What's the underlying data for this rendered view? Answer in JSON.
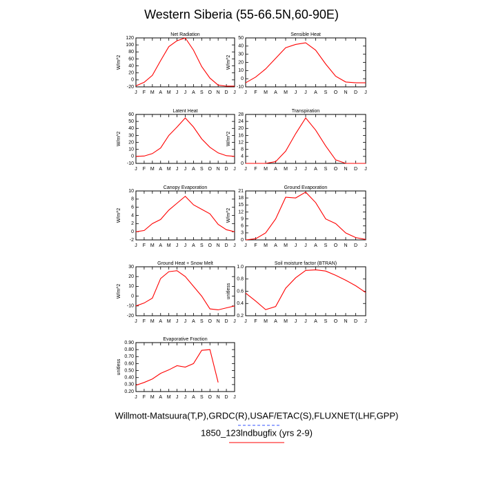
{
  "title": "Western Siberia (55-66.5N,60-90E)",
  "footer": [
    "Willmott-Matsuura(T,P),GRDC(R),USAF/ETAC(S),FLUXNET(LHF,GPP)",
    "1850_123lndbugfix (yrs 2-9)"
  ],
  "chart_data": [
    {
      "type": "line",
      "title": "Net Radiation",
      "y_label": "W/m^2",
      "categories": [
        "J",
        "F",
        "M",
        "A",
        "M",
        "J",
        "J",
        "A",
        "S",
        "O",
        "N",
        "D",
        "J"
      ],
      "series": [
        {
          "color": "#ff0000",
          "values": [
            -17,
            -7,
            13,
            55,
            95,
            112,
            120,
            85,
            38,
            5,
            -15,
            -18,
            -18
          ]
        }
      ],
      "ylim": [
        -20,
        120
      ],
      "yticks": [
        -20,
        0,
        20,
        40,
        60,
        80,
        100,
        120
      ]
    },
    {
      "type": "line",
      "title": "Sensible Heat",
      "y_label": "W/m^2",
      "categories": [
        "J",
        "F",
        "M",
        "A",
        "M",
        "J",
        "J",
        "A",
        "S",
        "O",
        "N",
        "D",
        "J"
      ],
      "series": [
        {
          "color": "#ff0000",
          "values": [
            -5,
            2,
            12,
            25,
            38,
            42,
            44,
            35,
            18,
            3,
            -4,
            -5,
            -5
          ]
        }
      ],
      "ylim": [
        -10,
        50
      ],
      "yticks": [
        -10,
        0,
        10,
        20,
        30,
        40,
        50
      ]
    },
    {
      "type": "line",
      "title": "Latent Heat",
      "y_label": "W/m^2",
      "categories": [
        "J",
        "F",
        "M",
        "A",
        "M",
        "J",
        "J",
        "A",
        "S",
        "O",
        "N",
        "D",
        "J"
      ],
      "series": [
        {
          "color": "#ff0000",
          "values": [
            0,
            0.5,
            4,
            12,
            30,
            42,
            55,
            42,
            25,
            13,
            5,
            1,
            0
          ]
        }
      ],
      "ylim": [
        -10,
        60
      ],
      "yticks": [
        -10,
        0,
        10,
        20,
        30,
        40,
        50,
        60
      ]
    },
    {
      "type": "line",
      "title": "Transpiration",
      "y_label": "W/m^2",
      "categories": [
        "J",
        "F",
        "M",
        "A",
        "M",
        "J",
        "J",
        "A",
        "S",
        "O",
        "N",
        "D",
        "J"
      ],
      "series": [
        {
          "color": "#ff0000",
          "values": [
            0,
            0,
            0,
            1,
            7,
            17,
            26,
            19,
            10,
            2,
            0,
            0,
            0
          ]
        }
      ],
      "ylim": [
        0,
        28
      ],
      "yticks": [
        0,
        4,
        8,
        12,
        16,
        20,
        24,
        28
      ]
    },
    {
      "type": "line",
      "title": "Canopy Evaporation",
      "y_label": "W/m^2",
      "categories": [
        "J",
        "F",
        "M",
        "A",
        "M",
        "J",
        "J",
        "A",
        "S",
        "O",
        "N",
        "D",
        "J"
      ],
      "series": [
        {
          "color": "#ff0000",
          "values": [
            0,
            0.3,
            2,
            3,
            5.3,
            7,
            8.7,
            6.6,
            5.5,
            4.4,
            1.8,
            0.5,
            0
          ]
        }
      ],
      "ylim": [
        -2,
        10
      ],
      "yticks": [
        -2,
        0,
        2,
        4,
        6,
        8,
        10
      ]
    },
    {
      "type": "line",
      "title": "Ground Evaporation",
      "y_label": "W/m^2",
      "categories": [
        "J",
        "F",
        "M",
        "A",
        "M",
        "J",
        "J",
        "A",
        "S",
        "O",
        "N",
        "D",
        "J"
      ],
      "series": [
        {
          "color": "#ff0000",
          "values": [
            0,
            0.5,
            3,
            9,
            18.3,
            18,
            20.5,
            16,
            9,
            7,
            3,
            1,
            0.2
          ]
        }
      ],
      "ylim": [
        0,
        21
      ],
      "yticks": [
        0,
        3,
        6,
        9,
        12,
        15,
        18,
        21
      ]
    },
    {
      "type": "line",
      "title": "Ground Heat + Snow Melt",
      "y_label": "W/m^2",
      "categories": [
        "J",
        "F",
        "M",
        "A",
        "M",
        "J",
        "J",
        "A",
        "S",
        "O",
        "N",
        "D",
        "J"
      ],
      "series": [
        {
          "color": "#ff0000",
          "values": [
            -10,
            -7,
            -2,
            18,
            25,
            26,
            20,
            10,
            0,
            -13,
            -14,
            -12,
            -10
          ]
        }
      ],
      "ylim": [
        -20,
        30
      ],
      "yticks": [
        -20,
        -10,
        0,
        10,
        20,
        30
      ]
    },
    {
      "type": "line",
      "title": "Soil moisture factor (BTRAN)",
      "y_label": "unitless",
      "categories": [
        "J",
        "F",
        "M",
        "A",
        "M",
        "J",
        "J",
        "A",
        "S",
        "O",
        "N",
        "D",
        "J"
      ],
      "series": [
        {
          "color": "#ff0000",
          "values": [
            0.57,
            0.44,
            0.3,
            0.35,
            0.65,
            0.82,
            0.94,
            0.95,
            0.93,
            0.86,
            0.78,
            0.69,
            0.58
          ]
        }
      ],
      "ylim": [
        0.2,
        1.0
      ],
      "yticks": [
        0.2,
        0.4,
        0.6,
        0.8,
        {
          "value": 1.0,
          "label": "1.0"
        }
      ]
    },
    {
      "type": "line",
      "title": "Evaporative Fraction",
      "y_label": "unitless",
      "categories": [
        "J",
        "F",
        "M",
        "A",
        "M",
        "J",
        "J",
        "A",
        "S",
        "O",
        "N",
        "D",
        "J"
      ],
      "series": [
        {
          "color": "#ff0000",
          "values": [
            0.29,
            0.33,
            0.38,
            0.46,
            0.51,
            0.57,
            0.55,
            0.6,
            0.79,
            0.8,
            0.33,
            null,
            null
          ]
        }
      ],
      "ylim": [
        0.2,
        0.9
      ],
      "yticks": [
        {
          "value": 0.2,
          "label": "0.20"
        },
        {
          "value": 0.3,
          "label": "0.30"
        },
        {
          "value": 0.4,
          "label": "0.40"
        },
        {
          "value": 0.5,
          "label": "0.50"
        },
        {
          "value": 0.6,
          "label": "0.60"
        },
        {
          "value": 0.7,
          "label": "0.70"
        },
        {
          "value": 0.8,
          "label": "0.80"
        },
        {
          "value": 0.9,
          "label": "0.90"
        }
      ]
    }
  ]
}
